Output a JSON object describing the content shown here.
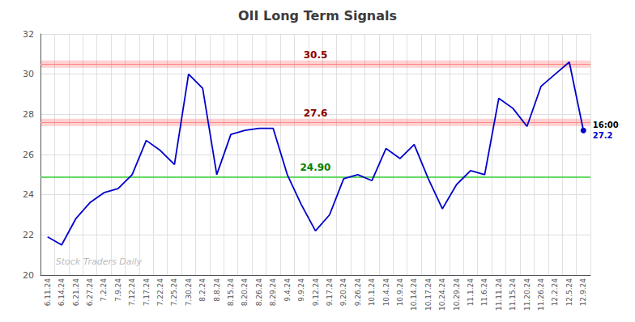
{
  "chart_data": {
    "type": "line",
    "title": "OII Long Term Signals",
    "categories": [
      "6.11.24",
      "6.14.24",
      "6.21.24",
      "6.27.24",
      "7.2.24",
      "7.9.24",
      "7.12.24",
      "7.17.24",
      "7.22.24",
      "7.25.24",
      "7.30.24",
      "8.2.24",
      "8.8.24",
      "8.15.24",
      "8.20.24",
      "8.26.24",
      "8.29.24",
      "9.4.24",
      "9.9.24",
      "9.12.24",
      "9.17.24",
      "9.20.24",
      "9.26.24",
      "10.1.24",
      "10.4.24",
      "10.9.24",
      "10.14.24",
      "10.17.24",
      "10.24.24",
      "10.29.24",
      "11.1.24",
      "11.6.24",
      "11.11.24",
      "11.15.24",
      "11.20.24",
      "11.26.24",
      "12.2.24",
      "12.5.24",
      "12.9.24"
    ],
    "values": [
      21.9,
      21.5,
      22.8,
      23.6,
      24.1,
      24.3,
      25.0,
      26.7,
      26.2,
      25.5,
      30.0,
      29.3,
      25.0,
      27.0,
      27.2,
      27.3,
      27.3,
      25.0,
      23.5,
      22.2,
      23.0,
      24.8,
      25.0,
      24.7,
      26.3,
      25.8,
      26.5,
      24.8,
      23.3,
      24.5,
      25.2,
      25.0,
      28.8,
      28.3,
      27.4,
      29.4,
      30.0,
      30.6,
      27.2
    ],
    "color": "#0000cc",
    "ylim": [
      20,
      32
    ],
    "yticks": [
      20,
      22,
      24,
      26,
      28,
      30,
      32
    ],
    "grid": true,
    "hlines": [
      {
        "value": 30.5,
        "label": "30.5",
        "color": "#ff8888",
        "label_color": "#8b0000",
        "band": {
          "range": [
            30.32,
            30.68
          ],
          "color": "#ff0000"
        }
      },
      {
        "value": 27.6,
        "label": "27.6",
        "color": "#ff8888",
        "label_color": "#8b0000",
        "band": {
          "range": [
            27.42,
            27.78
          ],
          "color": "#ff0000"
        }
      },
      {
        "value": 24.9,
        "label": "24.90",
        "color": "#33cc33",
        "label_color": "#008000"
      }
    ],
    "last_point": {
      "value": 27.2,
      "label": "16:00",
      "value_label": "27.2",
      "color": "#0000cc"
    },
    "watermark": {
      "text": "Stock Traders Daily",
      "color": "#bbbbbb"
    }
  }
}
